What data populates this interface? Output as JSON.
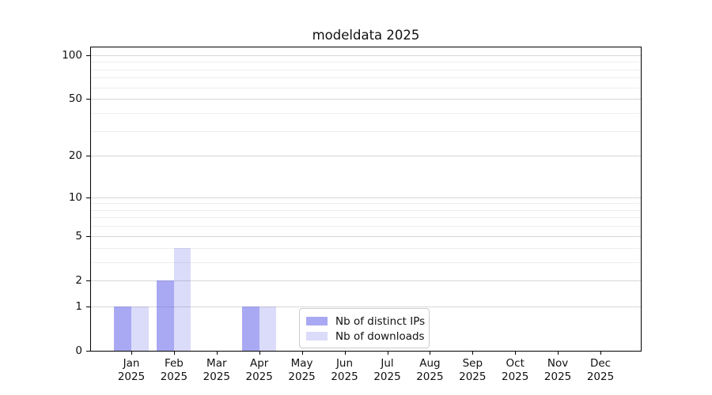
{
  "title": "modeldata 2025",
  "chart_data": {
    "type": "bar",
    "title": "modeldata 2025",
    "categories": [
      "Jan\n2025",
      "Feb\n2025",
      "Mar\n2025",
      "Apr\n2025",
      "May\n2025",
      "Jun\n2025",
      "Jul\n2025",
      "Aug\n2025",
      "Sep\n2025",
      "Oct\n2025",
      "Nov\n2025",
      "Dec\n2025"
    ],
    "series": [
      {
        "name": "Nb of distinct IPs",
        "values": [
          1,
          2,
          0,
          1,
          0,
          0,
          0,
          0,
          0,
          0,
          0,
          0
        ],
        "color_hex": "#a9a9f4",
        "fill": "rgba(92,92,232,0.53)"
      },
      {
        "name": "Nb of downloads",
        "values": [
          1,
          4,
          0,
          1,
          0,
          0,
          0,
          0,
          0,
          0,
          0,
          0
        ],
        "color_hex": "#dbdbf8",
        "fill": "rgba(92,92,232,0.22)"
      }
    ],
    "xlabel": "",
    "ylabel": "",
    "yscale": "log1p",
    "ylim": [
      0,
      113
    ],
    "yticks": [
      0,
      1,
      2,
      5,
      10,
      20,
      50,
      100
    ],
    "ytick_labels": [
      "0",
      "1",
      "2",
      "5",
      "10",
      "20",
      "50",
      "100"
    ],
    "minor_yticks": [
      3,
      4,
      6,
      7,
      8,
      9,
      30,
      40,
      60,
      70,
      80,
      90
    ],
    "grid": true,
    "grid_major_color": "#d7d7d7",
    "grid_minor_color": "#eeeeee",
    "legend_position": "lower center",
    "background_color": "#ffffff",
    "spine_color": "#000000"
  }
}
